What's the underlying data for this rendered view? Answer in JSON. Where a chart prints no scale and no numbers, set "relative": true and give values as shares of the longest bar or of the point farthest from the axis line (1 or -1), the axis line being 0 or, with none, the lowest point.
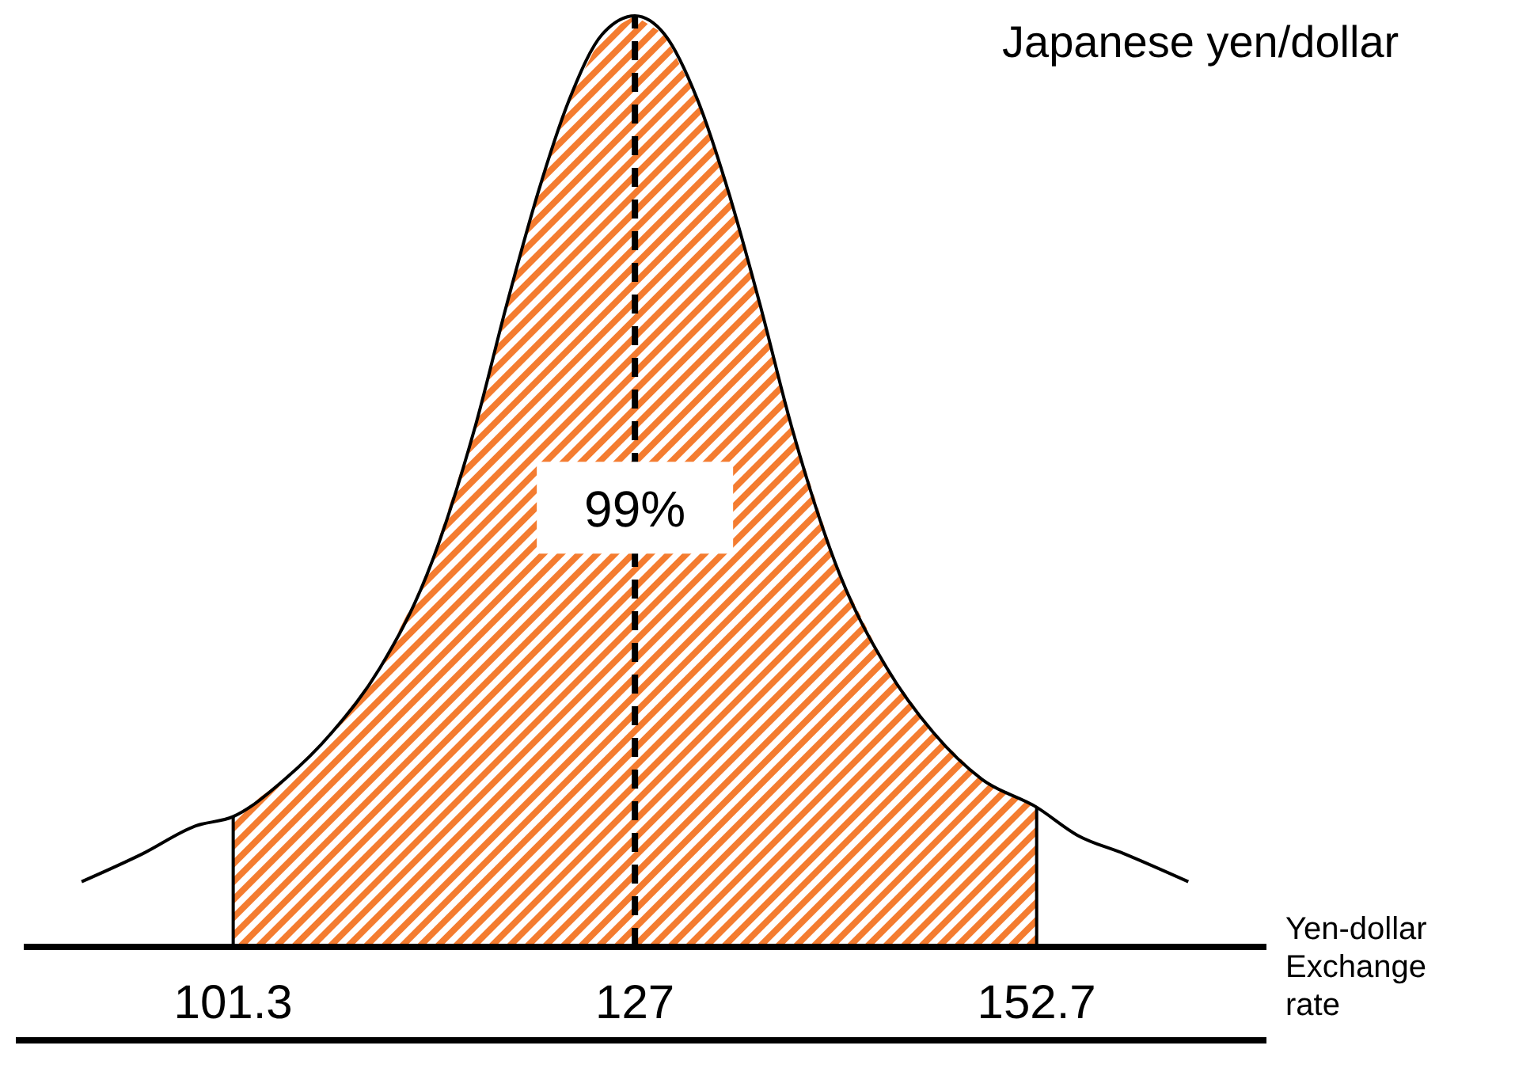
{
  "chart_data": {
    "type": "area",
    "title": "Japanese yen/dollar",
    "xlabel": "Yen-dollar Exchange rate",
    "relative": true,
    "xlim": [
      87.9,
      167.4
    ],
    "xticks": [
      101.3,
      127,
      152.7
    ],
    "series": [
      {
        "color": "#f47c30",
        "x": [
          101.3,
          104.6,
          107.6,
          110.7,
          113.7,
          116.8,
          118.8,
          120.8,
          122.8,
          124.9,
          127,
          128.9,
          131.0,
          133.0,
          135.0,
          137.0,
          140.1,
          143.1,
          146.1,
          149.2,
          152.7
        ],
        "values": [
          0.14,
          0.18,
          0.23,
          0.3,
          0.4,
          0.56,
          0.69,
          0.81,
          0.91,
          0.98,
          1,
          0.98,
          0.91,
          0.81,
          0.69,
          0.56,
          0.4,
          0.3,
          0.23,
          0.18,
          0.15
        ]
      },
      {
        "type": "line",
        "color": "#000000",
        "line_style": "solid",
        "x": [
          91.6,
          95.5,
          98.9,
          101.3,
          104.6,
          107.6,
          110.7,
          113.7,
          116.8,
          118.8,
          120.8,
          122.8,
          124.9,
          127,
          128.9,
          131.0,
          133.0,
          135.0,
          137.0,
          140.1,
          143.1,
          146.1,
          149.2,
          152.7,
          155.3,
          158.3,
          162.4
        ],
        "values": [
          0.07,
          0.1,
          0.13,
          0.14,
          0.18,
          0.23,
          0.3,
          0.4,
          0.56,
          0.69,
          0.81,
          0.91,
          0.98,
          1,
          0.98,
          0.91,
          0.81,
          0.69,
          0.56,
          0.4,
          0.3,
          0.23,
          0.18,
          0.15,
          0.12,
          0.1,
          0.07
        ]
      }
    ],
    "ref_lines": [
      {
        "axis": "x",
        "value": 127,
        "color": "#000000",
        "line_style": "dashed"
      },
      {
        "axis": "x",
        "value": 101.3,
        "color": "#000000",
        "line_style": "solid"
      },
      {
        "axis": "x",
        "value": 152.7,
        "color": "#000000",
        "line_style": "solid"
      }
    ],
    "annotations": [
      {
        "text": "99%",
        "x": 127,
        "y": 0.47
      }
    ]
  }
}
